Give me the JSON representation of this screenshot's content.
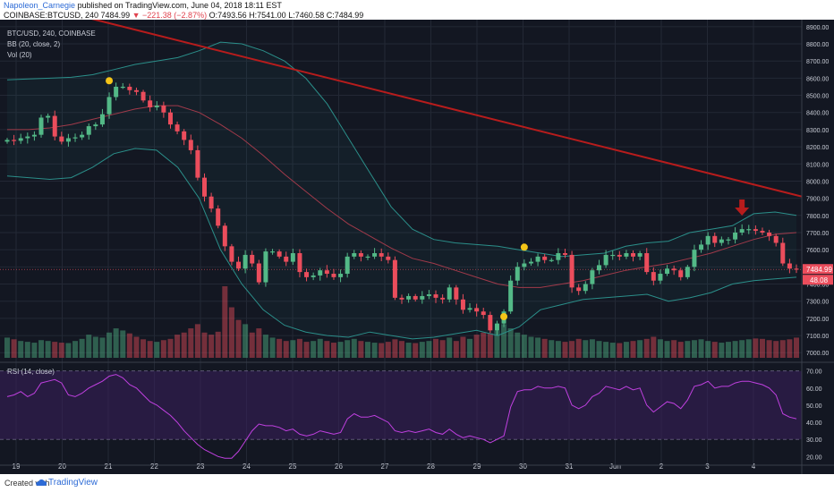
{
  "header": {
    "author": "Napoleon_Carnegie",
    "published": "published on TradingView.com, June 04, 2018 18:11 EST",
    "symbol": "COINBASE:BTCUSD, 240",
    "last": "7484.99",
    "change": "▼ −221.38 (−2.87%)",
    "open": "O:7493.56",
    "high": "H:7541.00",
    "low": "L:7460.58",
    "close": "C:7484.99"
  },
  "legend": {
    "title": "BTC/USD, 240, COINBASE",
    "bb": "BB (20, close, 2)",
    "vol": "Vol (20)",
    "rsi": "RSI (14, close)"
  },
  "price_tag": "7484.99",
  "vol_tag": "48.08",
  "footer": {
    "created": "Created with",
    "brand": "TradingView"
  },
  "colors": {
    "background": "#131722",
    "up": "#53b987",
    "down": "#eb4d5c",
    "bb_band": "#2b8f8a",
    "bb_basis": "#a13a4a",
    "trendline": "#b71c1c",
    "rsi_line": "#c040e0",
    "rsi_fill": "#3a1f5c",
    "marker_dot": "#f5c518",
    "arrow": "#b71c1c"
  },
  "chart_data": [
    {
      "type": "candlestick",
      "x_ticks": [
        "19",
        "20",
        "21",
        "22",
        "23",
        "24",
        "25",
        "26",
        "27",
        "28",
        "29",
        "30",
        "31",
        "Jun",
        "2",
        "3",
        "4"
      ],
      "price_ticks": [
        7000,
        7100,
        7200,
        7300,
        7400,
        7500,
        7600,
        7700,
        7800,
        7900,
        8000,
        8100,
        8200,
        8300,
        8400,
        8500,
        8600,
        8700,
        8800,
        8900
      ],
      "ylim": [
        6970,
        8920
      ],
      "close_series": [
        8240,
        8235,
        8250,
        8260,
        8270,
        8370,
        8380,
        8260,
        8230,
        8250,
        8255,
        8270,
        8320,
        8330,
        8390,
        8490,
        8550,
        8550,
        8530,
        8520,
        8470,
        8430,
        8440,
        8400,
        8330,
        8290,
        8240,
        8180,
        8020,
        7910,
        7840,
        7740,
        7620,
        7530,
        7490,
        7570,
        7520,
        7410,
        7590,
        7590,
        7560,
        7530,
        7580,
        7470,
        7440,
        7450,
        7480,
        7460,
        7440,
        7460,
        7560,
        7580,
        7560,
        7560,
        7580,
        7560,
        7540,
        7320,
        7310,
        7330,
        7310,
        7330,
        7340,
        7320,
        7310,
        7380,
        7310,
        7250,
        7260,
        7240,
        7220,
        7130,
        7170,
        7240,
        7420,
        7500,
        7520,
        7530,
        7560,
        7540,
        7540,
        7580,
        7570,
        7380,
        7360,
        7400,
        7480,
        7510,
        7570,
        7570,
        7560,
        7580,
        7560,
        7580,
        7470,
        7420,
        7460,
        7490,
        7480,
        7440,
        7500,
        7600,
        7630,
        7680,
        7640,
        7660,
        7660,
        7700,
        7720,
        7720,
        7710,
        7700,
        7680,
        7640,
        7520,
        7490,
        7484.99
      ],
      "bb_upper": [
        8590,
        8595,
        8600,
        8605,
        8620,
        8650,
        8680,
        8700,
        8720,
        8760,
        8810,
        8800,
        8760,
        8700,
        8600,
        8450,
        8250,
        8050,
        7850,
        7720,
        7660,
        7640,
        7630,
        7620,
        7600,
        7580,
        7560,
        7570,
        7580,
        7620,
        7640,
        7650,
        7700,
        7720,
        7740,
        7810,
        7820,
        7800
      ],
      "bb_basis": [
        8300,
        8300,
        8310,
        8330,
        8360,
        8390,
        8420,
        8440,
        8440,
        8400,
        8330,
        8250,
        8150,
        8040,
        7940,
        7840,
        7750,
        7680,
        7610,
        7550,
        7520,
        7480,
        7440,
        7400,
        7380,
        7380,
        7400,
        7420,
        7450,
        7480,
        7500,
        7520,
        7550,
        7580,
        7620,
        7660,
        7690,
        7700
      ],
      "bb_lower": [
        8030,
        8020,
        8010,
        8020,
        8080,
        8160,
        8190,
        8180,
        8080,
        7900,
        7600,
        7400,
        7250,
        7160,
        7120,
        7100,
        7090,
        7120,
        7100,
        7080,
        7090,
        7110,
        7130,
        7100,
        7150,
        7250,
        7280,
        7310,
        7320,
        7330,
        7340,
        7300,
        7320,
        7350,
        7400,
        7420,
        7430,
        7440
      ],
      "trendline": {
        "from_price": 9030,
        "to_price": 7910,
        "from_day": "19",
        "to_day": "4"
      }
    },
    {
      "type": "bar",
      "name": "Vol (20)",
      "values": [
        48,
        44,
        40,
        38,
        36,
        42,
        40,
        38,
        36,
        35,
        40,
        45,
        55,
        50,
        48,
        60,
        70,
        65,
        58,
        50,
        44,
        40,
        38,
        42,
        45,
        55,
        60,
        70,
        80,
        60,
        55,
        62,
        170,
        120,
        90,
        80,
        60,
        70,
        55,
        48,
        45,
        40,
        42,
        45,
        38,
        40,
        45,
        40,
        36,
        38,
        42,
        45,
        40,
        38,
        36,
        35,
        38,
        44,
        40,
        36,
        35,
        38,
        40,
        45,
        42,
        48,
        40,
        50,
        45,
        55,
        60,
        58,
        65,
        80,
        70,
        60,
        55,
        50,
        48,
        45,
        42,
        40,
        38,
        40,
        45,
        42,
        44,
        40,
        38,
        36,
        35,
        38,
        40,
        42,
        45,
        50,
        44,
        40,
        42,
        38,
        40,
        42,
        44,
        40,
        38,
        36,
        38,
        40,
        42,
        44,
        46,
        45,
        42,
        40,
        42,
        44,
        48
      ]
    },
    {
      "type": "line",
      "name": "RSI (14, close)",
      "y_ticks": [
        20,
        30,
        40,
        50,
        60,
        70
      ],
      "ylim": [
        17,
        73
      ],
      "bands": [
        30,
        70
      ],
      "values": [
        55,
        56,
        58,
        55,
        57,
        63,
        64,
        65,
        63,
        56,
        55,
        57,
        60,
        62,
        64,
        67,
        68,
        66,
        62,
        60,
        56,
        52,
        50,
        47,
        44,
        40,
        35,
        31,
        27,
        24,
        22,
        20,
        19,
        19,
        23,
        29,
        35,
        39,
        38,
        38,
        37,
        35,
        36,
        33,
        32,
        33,
        35,
        34,
        33,
        34,
        42,
        45,
        43,
        43,
        44,
        42,
        40,
        35,
        34,
        35,
        34,
        35,
        36,
        34,
        33,
        36,
        33,
        31,
        32,
        31,
        30,
        28,
        30,
        32,
        49,
        58,
        59,
        59,
        61,
        60,
        60,
        61,
        60,
        50,
        48,
        50,
        55,
        57,
        61,
        60,
        59,
        61,
        59,
        60,
        50,
        46,
        49,
        52,
        51,
        48,
        53,
        61,
        62,
        64,
        60,
        61,
        61,
        63,
        64,
        64,
        63,
        62,
        60,
        56,
        45,
        43,
        42
      ]
    }
  ]
}
